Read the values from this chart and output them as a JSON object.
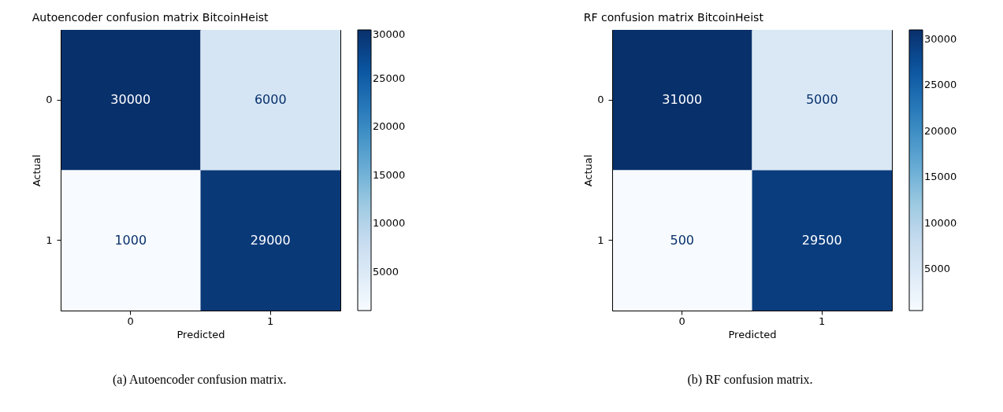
{
  "chart_data": [
    {
      "type": "heatmap",
      "title": "Autoencoder confusion matrix BitcoinHeist",
      "xlabel": "Predicted",
      "ylabel": "Actual",
      "categories": [
        "0",
        "1"
      ],
      "y_categories": [
        "0",
        "1"
      ],
      "cells": [
        [
          30000,
          6000
        ],
        [
          1000,
          29000
        ]
      ],
      "clim": [
        1000,
        30000
      ],
      "cticks": [
        5000,
        10000,
        15000,
        20000,
        25000,
        30000
      ],
      "data_labels": true,
      "annotations": [
        "(a) Autoencoder confusion matrix."
      ]
    },
    {
      "type": "heatmap",
      "title": "RF confusion matrix BitcoinHeist",
      "xlabel": "Predicted",
      "ylabel": "Actual",
      "categories": [
        "0",
        "1"
      ],
      "y_categories": [
        "0",
        "1"
      ],
      "cells": [
        [
          31000,
          5000
        ],
        [
          500,
          29500
        ]
      ],
      "clim": [
        500,
        31000
      ],
      "cticks": [
        5000,
        10000,
        15000,
        20000,
        25000,
        30000
      ],
      "data_labels": true,
      "annotations": [
        "(b) RF confusion matrix."
      ]
    }
  ]
}
